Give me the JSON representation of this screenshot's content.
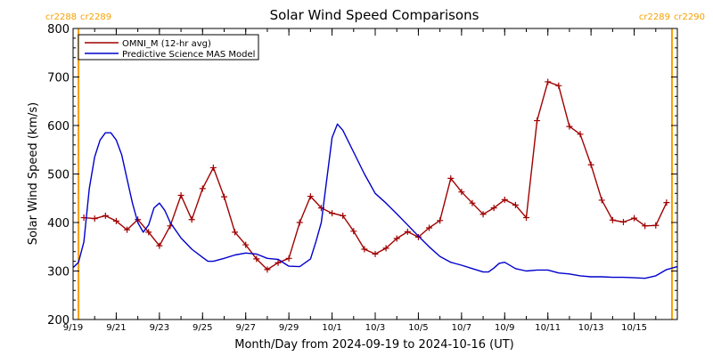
{
  "chart_data": {
    "type": "line",
    "title": "Solar Wind Speed Comparisons",
    "xlabel": "Month/Day from 2024-09-19 to 2024-10-16 (UT)",
    "ylabel": "Solar Wind Speed (km/s)",
    "xlim": [
      "2024-09-19",
      "2024-10-17"
    ],
    "ylim": [
      200,
      800
    ],
    "legend_position": "top-left",
    "x_ticks": [
      {
        "date": "2024-09-19",
        "label": "9/19"
      },
      {
        "date": "2024-09-21",
        "label": "9/21"
      },
      {
        "date": "2024-09-23",
        "label": "9/23"
      },
      {
        "date": "2024-09-25",
        "label": "9/25"
      },
      {
        "date": "2024-09-27",
        "label": "9/27"
      },
      {
        "date": "2024-09-29",
        "label": "9/29"
      },
      {
        "date": "2024-10-01",
        "label": "10/1"
      },
      {
        "date": "2024-10-03",
        "label": "10/3"
      },
      {
        "date": "2024-10-05",
        "label": "10/5"
      },
      {
        "date": "2024-10-07",
        "label": "10/7"
      },
      {
        "date": "2024-10-09",
        "label": "10/9"
      },
      {
        "date": "2024-10-11",
        "label": "10/11"
      },
      {
        "date": "2024-10-13",
        "label": "10/13"
      },
      {
        "date": "2024-10-15",
        "label": "10/15"
      }
    ],
    "y_ticks": [
      "200",
      "300",
      "400",
      "500",
      "600",
      "700",
      "800"
    ],
    "carrington_markers": [
      {
        "date": "2024-09-19T06:00",
        "label_left": "cr2288",
        "label_right": "cr2289",
        "color": "#f5a000"
      },
      {
        "date": "2024-10-16T18:00",
        "label_left": "cr2289",
        "label_right": "cr2290",
        "color": "#f5a000"
      }
    ],
    "series": [
      {
        "name": "OMNI_M (12-hr avg)",
        "color": "#a00000",
        "marker": "plus",
        "points": [
          [
            "2024-09-19T12:00",
            410
          ],
          [
            "2024-09-20T00:00",
            408
          ],
          [
            "2024-09-20T12:00",
            414
          ],
          [
            "2024-09-21T00:00",
            403
          ],
          [
            "2024-09-21T12:00",
            385
          ],
          [
            "2024-09-22T00:00",
            406
          ],
          [
            "2024-09-22T12:00",
            380
          ],
          [
            "2024-09-23T00:00",
            352
          ],
          [
            "2024-09-23T12:00",
            393
          ],
          [
            "2024-09-24T00:00",
            456
          ],
          [
            "2024-09-24T12:00",
            406
          ],
          [
            "2024-09-25T00:00",
            470
          ],
          [
            "2024-09-25T12:00",
            513
          ],
          [
            "2024-09-26T00:00",
            453
          ],
          [
            "2024-09-26T12:00",
            380
          ],
          [
            "2024-09-27T00:00",
            354
          ],
          [
            "2024-09-27T12:00",
            325
          ],
          [
            "2024-09-28T00:00",
            303
          ],
          [
            "2024-09-28T12:00",
            317
          ],
          [
            "2024-09-29T00:00",
            326
          ],
          [
            "2024-09-29T12:00",
            400
          ],
          [
            "2024-09-30T00:00",
            454
          ],
          [
            "2024-09-30T12:00",
            430
          ],
          [
            "2024-10-01T00:00",
            419
          ],
          [
            "2024-10-01T12:00",
            414
          ],
          [
            "2024-10-02T00:00",
            382
          ],
          [
            "2024-10-02T12:00",
            345
          ],
          [
            "2024-10-03T00:00",
            335
          ],
          [
            "2024-10-03T12:00",
            347
          ],
          [
            "2024-10-04T00:00",
            367
          ],
          [
            "2024-10-04T12:00",
            381
          ],
          [
            "2024-10-05T00:00",
            370
          ],
          [
            "2024-10-05T12:00",
            389
          ],
          [
            "2024-10-06T00:00",
            404
          ],
          [
            "2024-10-06T12:00",
            491
          ],
          [
            "2024-10-07T00:00",
            463
          ],
          [
            "2024-10-07T12:00",
            440
          ],
          [
            "2024-10-08T00:00",
            417
          ],
          [
            "2024-10-08T12:00",
            430
          ],
          [
            "2024-10-09T00:00",
            447
          ],
          [
            "2024-10-09T12:00",
            436
          ],
          [
            "2024-10-10T00:00",
            410
          ],
          [
            "2024-10-10T12:00",
            610
          ],
          [
            "2024-10-11T00:00",
            690
          ],
          [
            "2024-10-11T12:00",
            682
          ],
          [
            "2024-10-12T00:00",
            598
          ],
          [
            "2024-10-12T12:00",
            582
          ],
          [
            "2024-10-13T00:00",
            519
          ],
          [
            "2024-10-13T12:00",
            446
          ],
          [
            "2024-10-14T00:00",
            405
          ],
          [
            "2024-10-14T12:00",
            401
          ],
          [
            "2024-10-15T00:00",
            409
          ],
          [
            "2024-10-15T12:00",
            393
          ],
          [
            "2024-10-16T00:00",
            394
          ],
          [
            "2024-10-16T12:00",
            441
          ]
        ]
      },
      {
        "name": "Predictive Science MAS Model",
        "color": "#0000cc",
        "marker": "none",
        "points": [
          [
            "2024-09-19T00:00",
            307
          ],
          [
            "2024-09-19T06:00",
            318
          ],
          [
            "2024-09-19T12:00",
            360
          ],
          [
            "2024-09-19T18:00",
            470
          ],
          [
            "2024-09-20T00:00",
            535
          ],
          [
            "2024-09-20T06:00",
            570
          ],
          [
            "2024-09-20T12:00",
            585
          ],
          [
            "2024-09-20T18:00",
            585
          ],
          [
            "2024-09-21T00:00",
            570
          ],
          [
            "2024-09-21T06:00",
            540
          ],
          [
            "2024-09-21T12:00",
            490
          ],
          [
            "2024-09-21T18:00",
            440
          ],
          [
            "2024-09-22T00:00",
            400
          ],
          [
            "2024-09-22T06:00",
            380
          ],
          [
            "2024-09-22T12:00",
            395
          ],
          [
            "2024-09-22T18:00",
            430
          ],
          [
            "2024-09-23T00:00",
            440
          ],
          [
            "2024-09-23T06:00",
            425
          ],
          [
            "2024-09-23T12:00",
            400
          ],
          [
            "2024-09-24T00:00",
            368
          ],
          [
            "2024-09-24T12:00",
            345
          ],
          [
            "2024-09-25T00:00",
            328
          ],
          [
            "2024-09-25T06:00",
            320
          ],
          [
            "2024-09-25T12:00",
            320
          ],
          [
            "2024-09-26T00:00",
            326
          ],
          [
            "2024-09-26T12:00",
            333
          ],
          [
            "2024-09-27T00:00",
            337
          ],
          [
            "2024-09-27T12:00",
            335
          ],
          [
            "2024-09-28T00:00",
            326
          ],
          [
            "2024-09-28T12:00",
            324
          ],
          [
            "2024-09-29T00:00",
            310
          ],
          [
            "2024-09-29T12:00",
            309
          ],
          [
            "2024-09-30T00:00",
            325
          ],
          [
            "2024-09-30T06:00",
            360
          ],
          [
            "2024-09-30T12:00",
            400
          ],
          [
            "2024-10-01T00:00",
            575
          ],
          [
            "2024-10-01T06:00",
            603
          ],
          [
            "2024-10-01T12:00",
            590
          ],
          [
            "2024-10-02T00:00",
            545
          ],
          [
            "2024-10-02T12:00",
            500
          ],
          [
            "2024-10-03T00:00",
            460
          ],
          [
            "2024-10-03T12:00",
            440
          ],
          [
            "2024-10-04T00:00",
            418
          ],
          [
            "2024-10-04T12:00",
            395
          ],
          [
            "2024-10-05T00:00",
            372
          ],
          [
            "2024-10-05T12:00",
            350
          ],
          [
            "2024-10-06T00:00",
            330
          ],
          [
            "2024-10-06T12:00",
            318
          ],
          [
            "2024-10-07T00:00",
            312
          ],
          [
            "2024-10-07T12:00",
            305
          ],
          [
            "2024-10-08T00:00",
            298
          ],
          [
            "2024-10-08T06:00",
            298
          ],
          [
            "2024-10-08T12:00",
            306
          ],
          [
            "2024-10-08T18:00",
            316
          ],
          [
            "2024-10-09T00:00",
            318
          ],
          [
            "2024-10-09T12:00",
            305
          ],
          [
            "2024-10-10T00:00",
            300
          ],
          [
            "2024-10-10T12:00",
            302
          ],
          [
            "2024-10-11T00:00",
            302
          ],
          [
            "2024-10-11T12:00",
            296
          ],
          [
            "2024-10-12T00:00",
            294
          ],
          [
            "2024-10-12T12:00",
            290
          ],
          [
            "2024-10-13T00:00",
            288
          ],
          [
            "2024-10-13T12:00",
            288
          ],
          [
            "2024-10-14T00:00",
            287
          ],
          [
            "2024-10-14T12:00",
            287
          ],
          [
            "2024-10-15T00:00",
            286
          ],
          [
            "2024-10-15T12:00",
            285
          ],
          [
            "2024-10-16T00:00",
            290
          ],
          [
            "2024-10-16T12:00",
            303
          ],
          [
            "2024-10-17T00:00",
            309
          ]
        ]
      }
    ]
  }
}
